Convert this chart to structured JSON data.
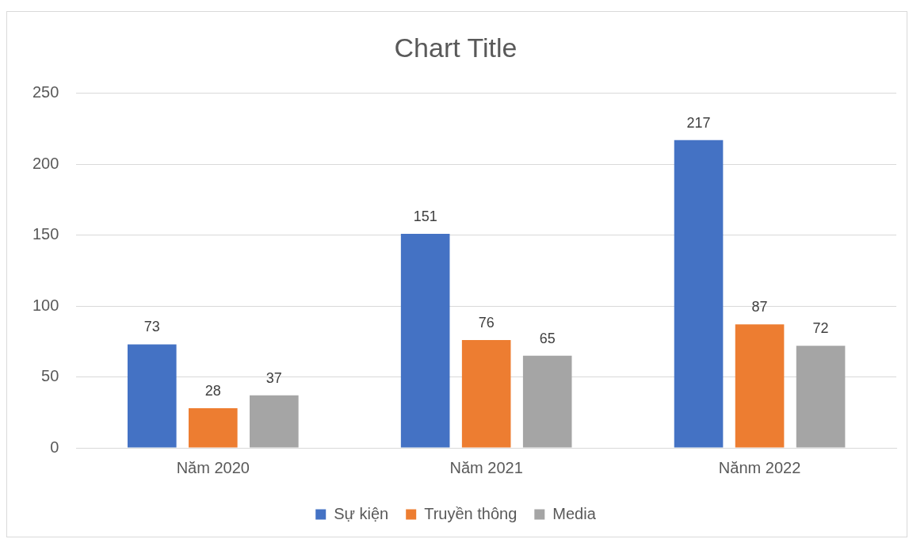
{
  "chart_data": {
    "type": "bar",
    "title": "Chart Title",
    "categories": [
      "Năm 2020",
      "Năm 2021",
      "Nănm 2022"
    ],
    "series": [
      {
        "name": "Sự kiện",
        "color": "#4472c4",
        "values": [
          73,
          151,
          217
        ]
      },
      {
        "name": "Truyền thông",
        "color": "#ed7d31",
        "values": [
          28,
          76,
          87
        ]
      },
      {
        "name": "Media",
        "color": "#a5a5a5",
        "values": [
          37,
          65,
          72
        ]
      }
    ],
    "ylim": [
      0,
      250
    ],
    "yticks": [
      0,
      50,
      100,
      150,
      200,
      250
    ],
    "grid": "y",
    "legend": "bottom",
    "data_labels": true
  }
}
